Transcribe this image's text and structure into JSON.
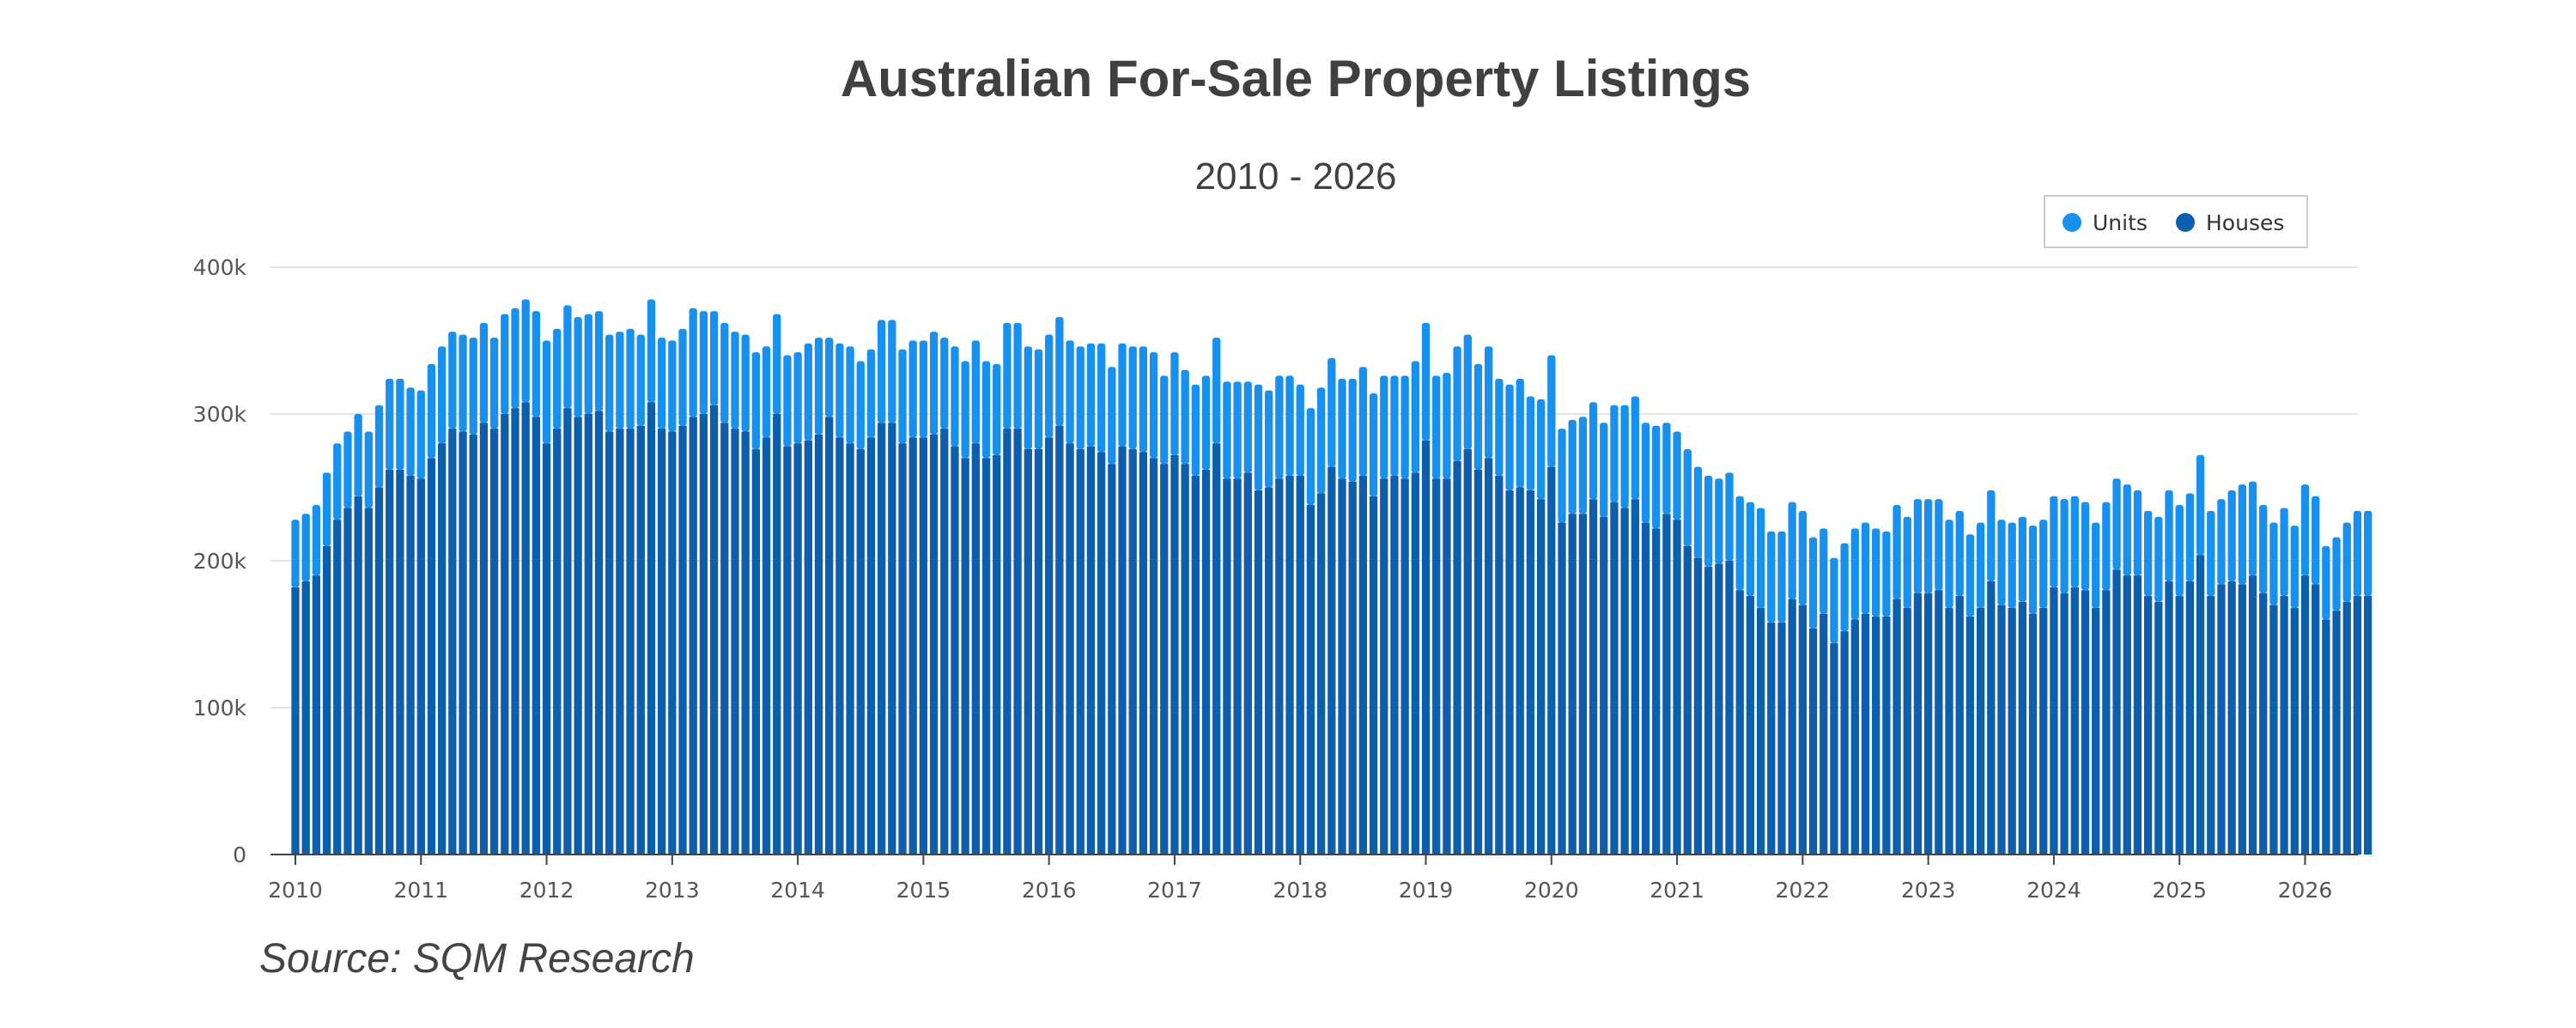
{
  "chart_data": {
    "type": "bar",
    "stacked": true,
    "title": "Australian For-Sale Property Listings",
    "subtitle": "2010 - 2026",
    "source": "Source: SQM Research",
    "ylim": [
      0,
      400000
    ],
    "y_ticks": [
      {
        "value": 0,
        "label": "0"
      },
      {
        "value": 100000,
        "label": "100k"
      },
      {
        "value": 200000,
        "label": "200k"
      },
      {
        "value": 300000,
        "label": "300k"
      },
      {
        "value": 400000,
        "label": "400k"
      }
    ],
    "x_ticks": [
      "2010",
      "2011",
      "2012",
      "2013",
      "2014",
      "2015",
      "2016",
      "2017",
      "2018",
      "2019",
      "2020",
      "2021",
      "2022",
      "2023",
      "2024",
      "2025",
      "2026"
    ],
    "x_start": "2010-01",
    "legend_position": "top-right",
    "grid": true,
    "series": [
      {
        "name": "Houses",
        "color": "#0d5fae",
        "values": [
          182,
          186,
          190,
          210,
          228,
          236,
          244,
          236,
          250,
          262,
          262,
          258,
          256,
          270,
          280,
          290,
          288,
          286,
          294,
          290,
          300,
          304,
          308,
          298,
          280,
          290,
          304,
          298,
          300,
          302,
          288,
          290,
          290,
          292,
          308,
          290,
          288,
          292,
          298,
          300,
          306,
          294,
          290,
          288,
          276,
          284,
          300,
          278,
          280,
          282,
          286,
          298,
          284,
          280,
          276,
          284,
          294,
          294,
          280,
          284,
          284,
          286,
          290,
          278,
          270,
          280,
          270,
          272,
          290,
          290,
          276,
          276,
          284,
          292,
          280,
          276,
          278,
          274,
          266,
          278,
          276,
          274,
          270,
          266,
          272,
          266,
          258,
          262,
          280,
          256,
          256,
          260,
          248,
          250,
          256,
          258,
          258,
          238,
          246,
          264,
          256,
          254,
          258,
          244,
          256,
          258,
          256,
          260,
          282,
          256,
          256,
          268,
          276,
          262,
          270,
          258,
          248,
          250,
          248,
          242,
          264,
          226,
          232,
          232,
          242,
          230,
          240,
          236,
          242,
          226,
          222,
          232,
          228,
          210,
          202,
          196,
          198,
          200,
          180,
          176,
          168,
          158,
          158,
          174,
          170,
          154,
          164,
          144,
          152,
          160,
          164,
          162,
          162,
          174,
          168,
          178,
          178,
          180,
          168,
          176,
          162,
          168,
          186,
          170,
          168,
          172,
          164,
          168,
          182,
          178,
          182,
          180,
          168,
          180,
          194,
          190,
          190,
          176,
          172,
          186,
          176,
          186,
          204,
          176,
          184,
          186,
          184,
          190,
          178,
          170,
          176,
          168,
          190,
          184,
          160,
          166,
          172,
          176,
          176
        ]
      },
      {
        "name": "Units",
        "color": "#1890f0",
        "values": [
          46,
          46,
          48,
          50,
          52,
          52,
          56,
          52,
          56,
          62,
          62,
          60,
          60,
          64,
          66,
          66,
          66,
          66,
          68,
          62,
          68,
          68,
          70,
          72,
          70,
          68,
          70,
          68,
          68,
          68,
          66,
          66,
          68,
          62,
          70,
          62,
          62,
          66,
          74,
          70,
          64,
          68,
          66,
          66,
          66,
          62,
          68,
          62,
          62,
          66,
          66,
          54,
          64,
          66,
          60,
          60,
          70,
          70,
          64,
          66,
          66,
          70,
          62,
          68,
          66,
          70,
          66,
          62,
          72,
          72,
          70,
          68,
          70,
          74,
          70,
          70,
          70,
          74,
          66,
          70,
          70,
          72,
          72,
          60,
          70,
          64,
          62,
          64,
          72,
          66,
          66,
          62,
          72,
          66,
          70,
          68,
          62,
          66,
          72,
          74,
          68,
          70,
          74,
          70,
          70,
          68,
          70,
          76,
          80,
          70,
          72,
          78,
          78,
          72,
          76,
          66,
          72,
          74,
          64,
          68,
          76,
          64,
          64,
          66,
          66,
          64,
          66,
          70,
          70,
          68,
          70,
          62,
          60,
          66,
          62,
          62,
          58,
          60,
          64,
          64,
          68,
          62,
          62,
          66,
          64,
          62,
          58,
          58,
          60,
          62,
          62,
          60,
          58,
          64,
          62,
          64,
          64,
          62,
          60,
          58,
          56,
          58,
          62,
          58,
          58,
          58,
          60,
          60,
          62,
          64,
          62,
          60,
          58,
          60,
          62,
          62,
          58,
          58,
          58,
          62,
          62,
          60,
          68,
          58,
          58,
          62,
          68,
          64,
          60,
          56,
          60,
          56,
          62,
          60,
          50,
          50,
          54,
          58,
          58
        ]
      }
    ]
  }
}
